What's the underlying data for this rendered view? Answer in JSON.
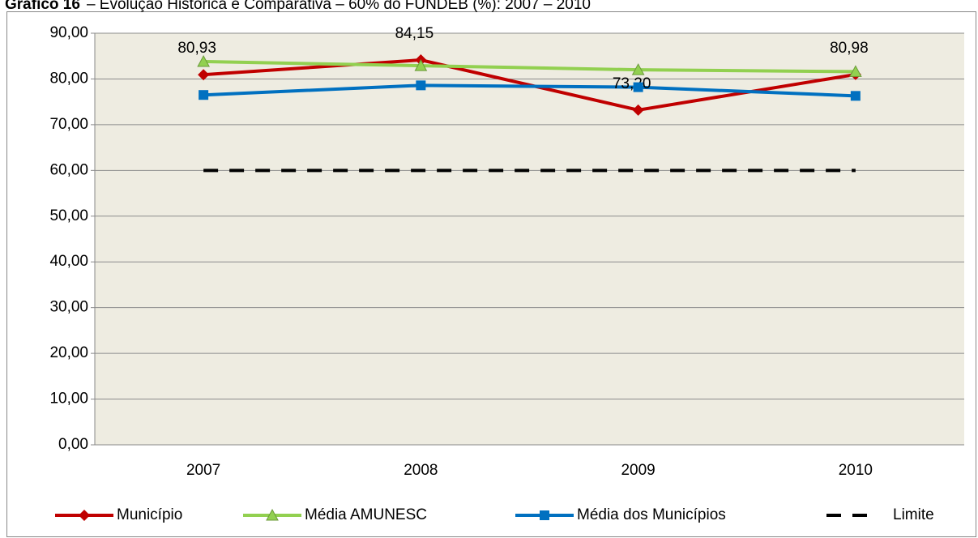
{
  "chart_data": {
    "type": "line",
    "title_label": "Gráfico 16",
    "title": "– Evolução Histórica e Comparativa – 60% do FUNDEB (%): 2007 – 2010",
    "categories": [
      "2007",
      "2008",
      "2009",
      "2010"
    ],
    "series": [
      {
        "name": "Município",
        "color": "#c00000",
        "marker": "diamond",
        "values": [
          80.93,
          84.15,
          73.2,
          80.98
        ],
        "value_labels": [
          "80,93",
          "84,15",
          "73,20",
          "80,98"
        ]
      },
      {
        "name": "Média AMUNESC",
        "color": "#92d050",
        "marker": "triangle",
        "values": [
          83.8,
          82.9,
          82.0,
          81.6
        ]
      },
      {
        "name": "Média dos Municípios",
        "color": "#0070c0",
        "marker": "square",
        "values": [
          76.5,
          78.6,
          78.2,
          76.3
        ]
      },
      {
        "name": "Limite",
        "color": "#000000",
        "marker": "none",
        "dashed": true,
        "values": [
          60,
          60,
          60,
          60
        ]
      }
    ],
    "ylim": [
      0,
      90
    ],
    "yticks": [
      {
        "value": 0,
        "label": "0,00"
      },
      {
        "value": 10,
        "label": "10,00"
      },
      {
        "value": 20,
        "label": "20,00"
      },
      {
        "value": 30,
        "label": "30,00"
      },
      {
        "value": 40,
        "label": "40,00"
      },
      {
        "value": 50,
        "label": "50,00"
      },
      {
        "value": 60,
        "label": "60,00"
      },
      {
        "value": 70,
        "label": "70,00"
      },
      {
        "value": 80,
        "label": "80,00"
      },
      {
        "value": 90,
        "label": "90,00"
      }
    ],
    "grid": true,
    "legend": "bottom"
  }
}
